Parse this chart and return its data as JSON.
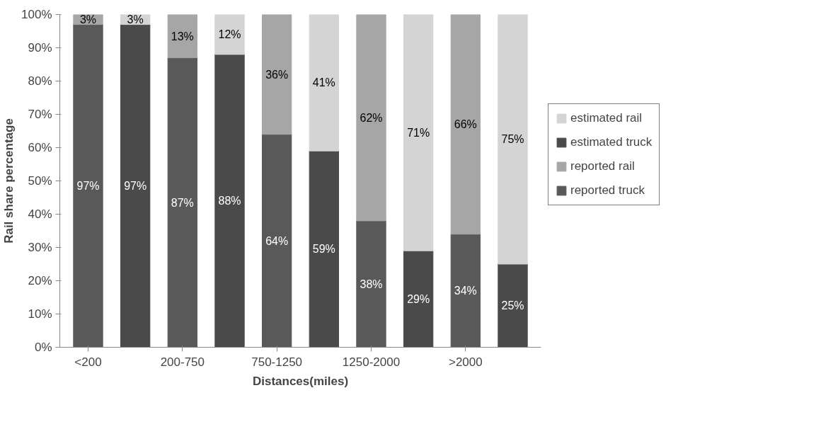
{
  "chart_data": {
    "type": "bar",
    "stacked": true,
    "xlabel": "Distances(miles)",
    "ylabel": "Rail share percentage",
    "categories": [
      "<200",
      null,
      "200-750",
      null,
      "750-1250",
      null,
      "1250-2000",
      null,
      ">2000",
      null
    ],
    "series": [
      {
        "name": "reported truck",
        "color": "#595959",
        "values": [
          97,
          null,
          87,
          null,
          64,
          null,
          38,
          null,
          34,
          null
        ],
        "value_labels": [
          "97%",
          null,
          "87%",
          null,
          "64%",
          null,
          "38%",
          null,
          "34%",
          null
        ]
      },
      {
        "name": "reported rail",
        "color": "#a6a6a6",
        "values": [
          3,
          null,
          13,
          null,
          36,
          null,
          62,
          null,
          66,
          null
        ],
        "value_labels": [
          "3%",
          null,
          "13%",
          null,
          "36%",
          null,
          "62%",
          null,
          "66%",
          null
        ]
      },
      {
        "name": "estimated truck",
        "color": "#4a4a4a",
        "values": [
          null,
          97,
          null,
          88,
          null,
          59,
          null,
          29,
          null,
          25
        ],
        "value_labels": [
          null,
          "97%",
          null,
          "88%",
          null,
          "59%",
          null,
          "29%",
          null,
          "25%"
        ]
      },
      {
        "name": "estimated rail",
        "color": "#d4d4d4",
        "values": [
          null,
          3,
          null,
          12,
          null,
          41,
          null,
          71,
          null,
          75
        ],
        "value_labels": [
          null,
          "3%",
          null,
          "12%",
          null,
          "41%",
          null,
          "71%",
          null,
          "75%"
        ]
      }
    ],
    "ylim": [
      0,
      100
    ],
    "yticks": [
      {
        "value": 0,
        "label": "0%"
      },
      {
        "value": 10,
        "label": "10%"
      },
      {
        "value": 20,
        "label": "20%"
      },
      {
        "value": 30,
        "label": "30%"
      },
      {
        "value": 40,
        "label": "40%"
      },
      {
        "value": 50,
        "label": "50%"
      },
      {
        "value": 60,
        "label": "60%"
      },
      {
        "value": 70,
        "label": "70%"
      },
      {
        "value": 80,
        "label": "80%"
      },
      {
        "value": 90,
        "label": "90%"
      },
      {
        "value": 100,
        "label": "100%"
      }
    ],
    "grid": false,
    "legend": "right"
  }
}
